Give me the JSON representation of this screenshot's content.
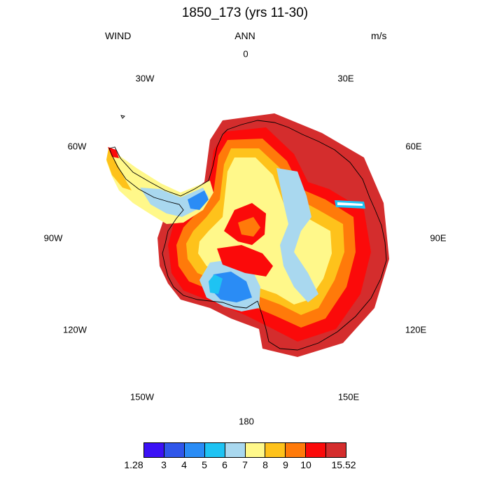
{
  "title": "1850_173 (yrs 11-30)",
  "variable": "WIND",
  "season": "ANN",
  "units": "m/s",
  "longitude_labels": [
    "0",
    "30E",
    "60E",
    "90E",
    "120E",
    "150E",
    "180",
    "150W",
    "120W",
    "90W",
    "60W",
    "30W"
  ],
  "colorbar": {
    "colors": [
      "#3b11f5",
      "#2f56ea",
      "#2a8cf5",
      "#1ec3f3",
      "#a9d8ef",
      "#fff88a",
      "#fec21b",
      "#ff7a0a",
      "#fb0a0a",
      "#d42d2d"
    ],
    "labels": [
      "1.28",
      "3",
      "4",
      "5",
      "6",
      "7",
      "8",
      "9",
      "10",
      "15.52"
    ]
  }
}
